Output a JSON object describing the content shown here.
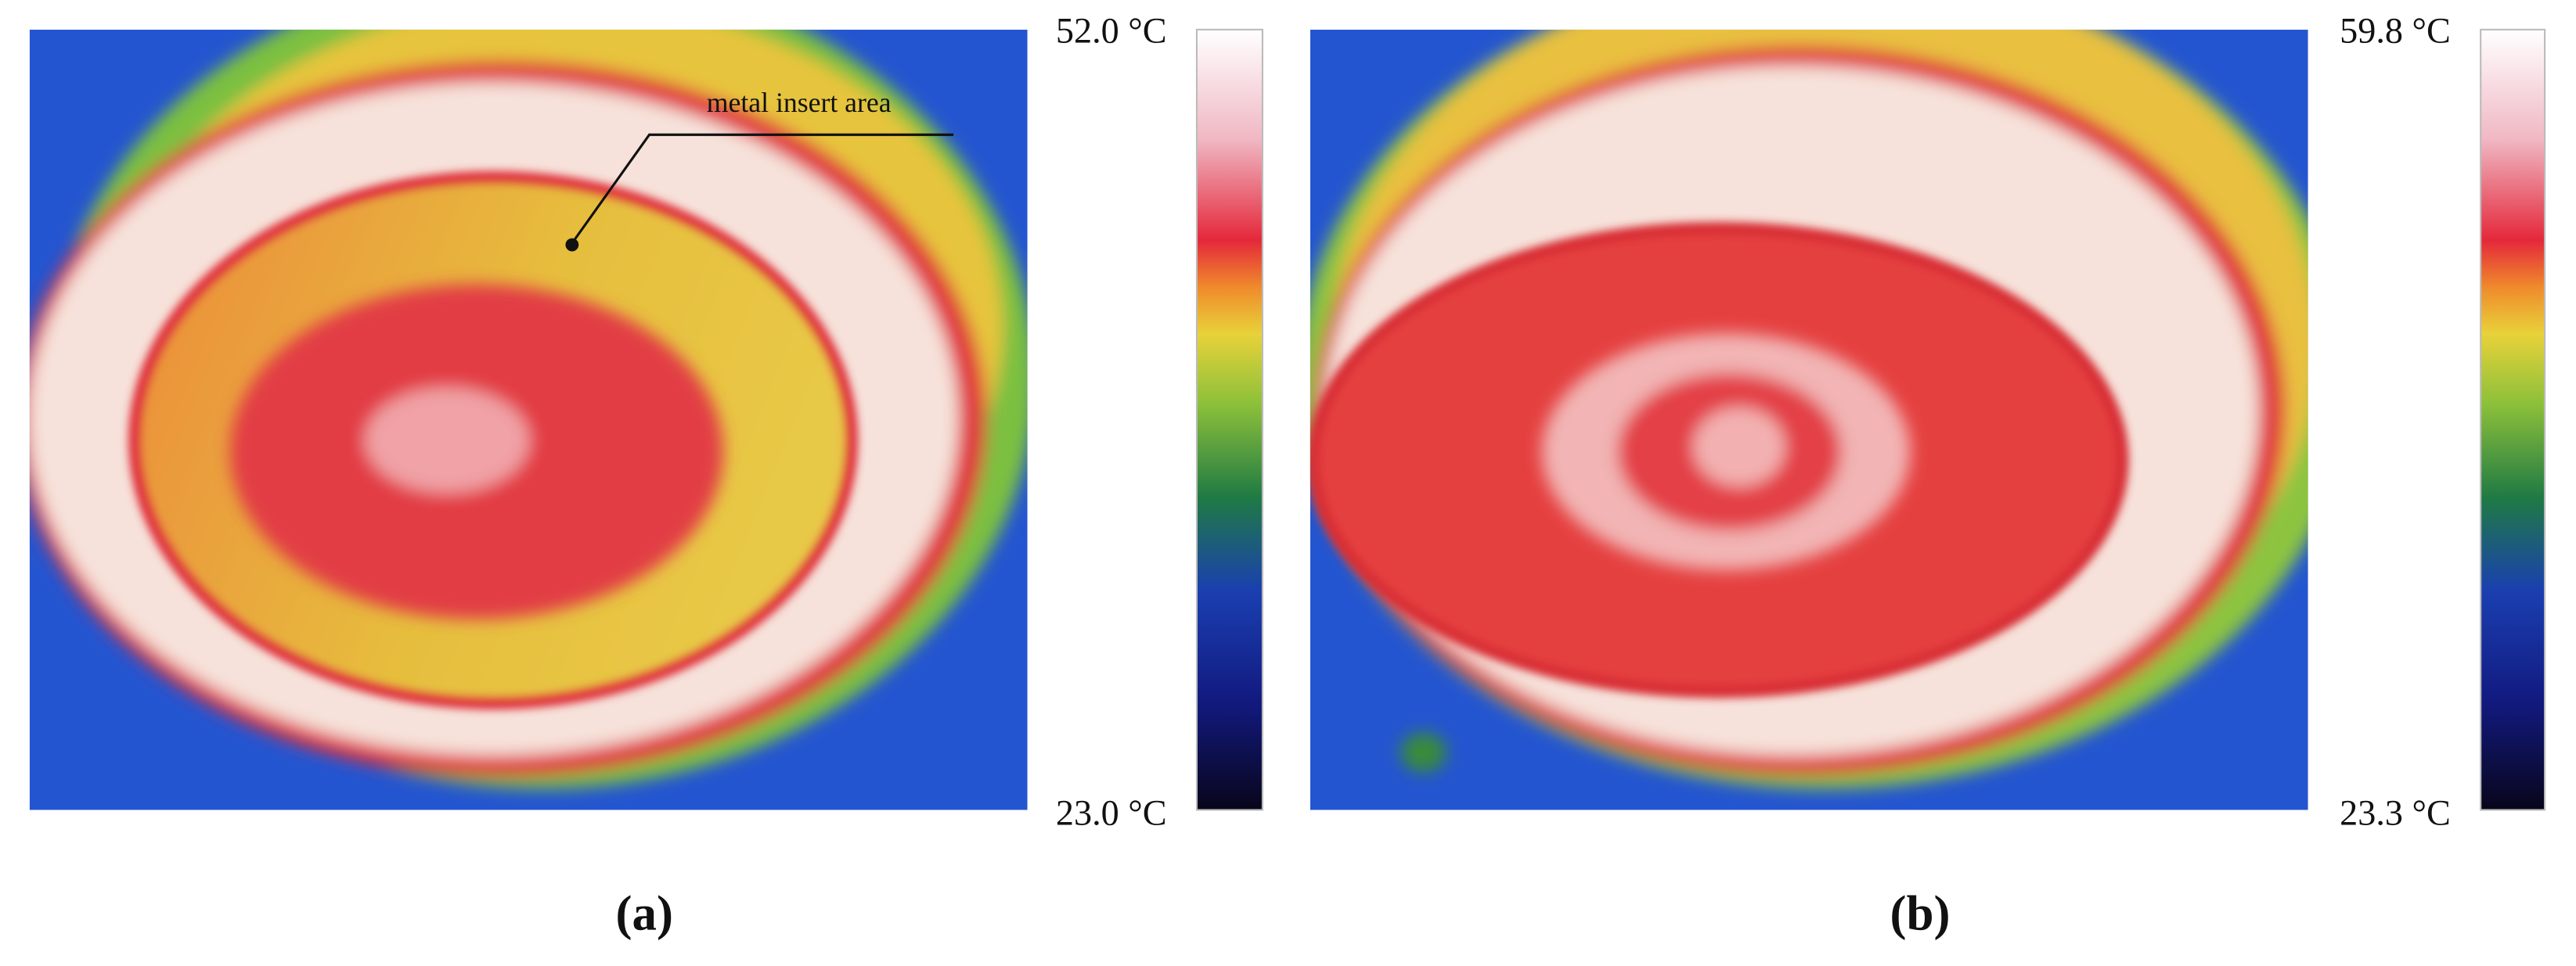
{
  "panels": [
    {
      "label": "(a)",
      "max_label": "52.0 °C",
      "min_label": "23.0 °C",
      "annotation": "metal insert area"
    },
    {
      "label": "(b)",
      "max_label": "59.8 °C",
      "min_label": "23.3 °C"
    }
  ]
}
